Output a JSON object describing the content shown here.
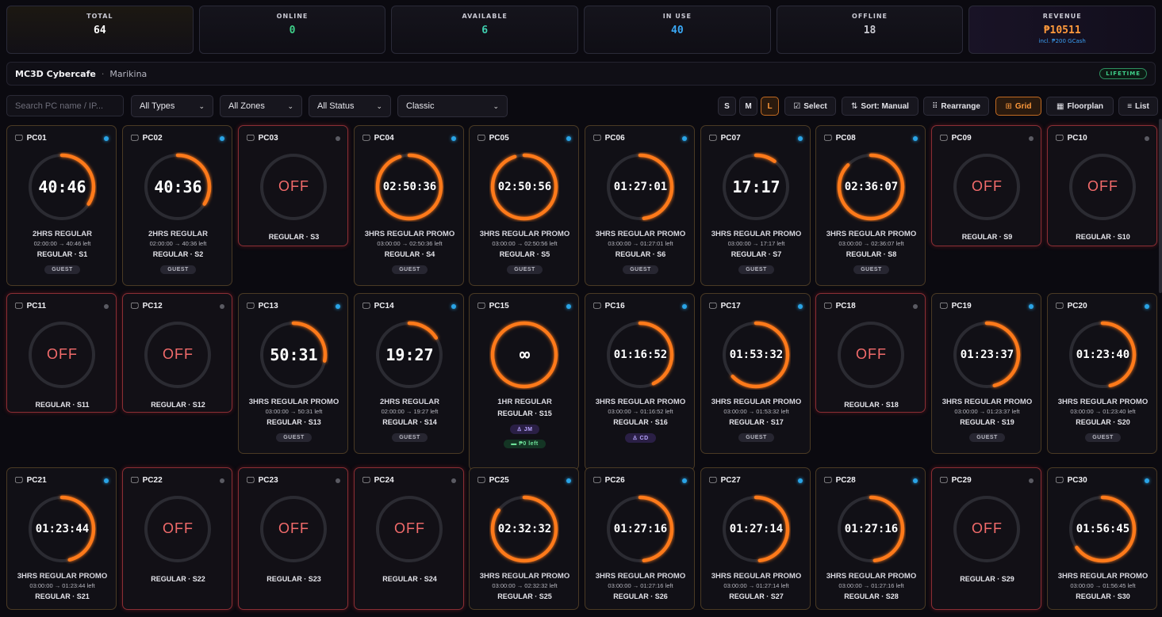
{
  "stats": [
    {
      "label": "TOTAL",
      "value": "64",
      "color": "#ffffff"
    },
    {
      "label": "ONLINE",
      "value": "0",
      "color": "#3fd08a"
    },
    {
      "label": "AVAILABLE",
      "value": "6",
      "color": "#3fd0b0"
    },
    {
      "label": "IN USE",
      "value": "40",
      "color": "#3aa8f5"
    },
    {
      "label": "OFFLINE",
      "value": "18",
      "color": "#c8c8d0"
    },
    {
      "label": "REVENUE",
      "value": "₱10511",
      "color": "#ff9a3c",
      "sub": "incl. ₱200 GCash"
    }
  ],
  "header": {
    "cafe_name": "MC3D Cybercafe",
    "separator": "·",
    "location": "Marikina",
    "license": "LIFETIME"
  },
  "toolbar": {
    "search_placeholder": "Search PC name / IP...",
    "type_filter": "All Types",
    "zone_filter": "All Zones",
    "status_filter": "All Status",
    "view_style": "Classic",
    "size_s": "S",
    "size_m": "M",
    "size_l": "L",
    "select_label": "Select",
    "sort_label": "Sort: Manual",
    "rearrange_label": "Rearrange",
    "grid_label": "Grid",
    "floorplan_label": "Floorplan",
    "list_label": "List"
  },
  "colors": {
    "accent": "#ff7a1a",
    "off": "#f26b6b",
    "online_dot": "#2aa4e6",
    "offline_dot": "#5a5a62",
    "track": "#2b2b32"
  },
  "pcs": [
    {
      "name": "PC01",
      "status": "inuse",
      "dot": "online",
      "time": "40:46",
      "progress": 0.34,
      "plan": "2HRS REGULAR",
      "timeline": "02:00:00 → 40:46 left",
      "seat": "REGULAR · S1",
      "badge": "GUEST"
    },
    {
      "name": "PC02",
      "status": "inuse",
      "dot": "online",
      "time": "40:36",
      "progress": 0.34,
      "plan": "2HRS REGULAR",
      "timeline": "02:00:00 → 40:36 left",
      "seat": "REGULAR · S2",
      "badge": "GUEST"
    },
    {
      "name": "PC03",
      "status": "off",
      "dot": "offline",
      "time": "OFF",
      "seat": "REGULAR · S3"
    },
    {
      "name": "PC04",
      "status": "inuse",
      "dot": "online",
      "time": "02:50:36",
      "progress": 0.95,
      "plan": "3HRS REGULAR PROMO",
      "timeline": "03:00:00 → 02:50:36 left",
      "seat": "REGULAR · S4",
      "badge": "GUEST"
    },
    {
      "name": "PC05",
      "status": "inuse",
      "dot": "online",
      "time": "02:50:56",
      "progress": 0.95,
      "plan": "3HRS REGULAR PROMO",
      "timeline": "03:00:00 → 02:50:56 left",
      "seat": "REGULAR · S5",
      "badge": "GUEST"
    },
    {
      "name": "PC06",
      "status": "inuse",
      "dot": "online",
      "time": "01:27:01",
      "progress": 0.48,
      "plan": "3HRS REGULAR PROMO",
      "timeline": "03:00:00 → 01:27:01 left",
      "seat": "REGULAR · S6",
      "badge": "GUEST"
    },
    {
      "name": "PC07",
      "status": "inuse",
      "dot": "online",
      "time": "17:17",
      "progress": 0.1,
      "plan": "3HRS REGULAR PROMO",
      "timeline": "03:00:00 → 17:17 left",
      "seat": "REGULAR · S7",
      "badge": "GUEST"
    },
    {
      "name": "PC08",
      "status": "inuse",
      "dot": "online",
      "time": "02:36:07",
      "progress": 0.87,
      "plan": "3HRS REGULAR PROMO",
      "timeline": "03:00:00 → 02:36:07 left",
      "seat": "REGULAR · S8",
      "badge": "GUEST"
    },
    {
      "name": "PC09",
      "status": "off",
      "dot": "offline",
      "time": "OFF",
      "seat": "REGULAR · S9"
    },
    {
      "name": "PC10",
      "status": "off",
      "dot": "offline",
      "time": "OFF",
      "seat": "REGULAR · S10"
    },
    {
      "name": "PC11",
      "status": "off",
      "dot": "offline",
      "time": "OFF",
      "seat": "REGULAR · S11"
    },
    {
      "name": "PC12",
      "status": "off",
      "dot": "offline",
      "time": "OFF",
      "seat": "REGULAR · S12"
    },
    {
      "name": "PC13",
      "status": "inuse",
      "dot": "online",
      "time": "50:31",
      "progress": 0.28,
      "plan": "3HRS REGULAR PROMO",
      "timeline": "03:00:00 → 50:31 left",
      "seat": "REGULAR · S13",
      "badge": "GUEST"
    },
    {
      "name": "PC14",
      "status": "inuse",
      "dot": "online",
      "time": "19:27",
      "progress": 0.16,
      "plan": "2HRS REGULAR",
      "timeline": "02:00:00 → 19:27 left",
      "seat": "REGULAR · S14",
      "badge": "GUEST"
    },
    {
      "name": "PC15",
      "status": "inuse",
      "dot": "online",
      "time": "∞",
      "progress": 1,
      "plan": "1HR REGULAR",
      "seat": "REGULAR · S15",
      "user": "JM",
      "wallet": "₱0 left"
    },
    {
      "name": "PC16",
      "status": "inuse",
      "dot": "online",
      "time": "01:16:52",
      "progress": 0.43,
      "plan": "3HRS REGULAR PROMO",
      "timeline": "03:00:00 → 01:16:52 left",
      "seat": "REGULAR · S16",
      "user": "CD"
    },
    {
      "name": "PC17",
      "status": "inuse",
      "dot": "online",
      "time": "01:53:32",
      "progress": 0.63,
      "plan": "3HRS REGULAR PROMO",
      "timeline": "03:00:00 → 01:53:32 left",
      "seat": "REGULAR · S17",
      "badge": "GUEST"
    },
    {
      "name": "PC18",
      "status": "off",
      "dot": "offline",
      "time": "OFF",
      "seat": "REGULAR · S18"
    },
    {
      "name": "PC19",
      "status": "inuse",
      "dot": "online",
      "time": "01:23:37",
      "progress": 0.46,
      "plan": "3HRS REGULAR PROMO",
      "timeline": "03:00:00 → 01:23:37 left",
      "seat": "REGULAR · S19",
      "badge": "GUEST"
    },
    {
      "name": "PC20",
      "status": "inuse",
      "dot": "online",
      "time": "01:23:40",
      "progress": 0.46,
      "plan": "3HRS REGULAR PROMO",
      "timeline": "03:00:00 → 01:23:40 left",
      "seat": "REGULAR · S20",
      "badge": "GUEST"
    },
    {
      "name": "PC21",
      "status": "inuse",
      "dot": "online",
      "time": "01:23:44",
      "progress": 0.46,
      "plan": "3HRS REGULAR PROMO",
      "timeline": "03:00:00 → 01:23:44 left",
      "seat": "REGULAR · S21"
    },
    {
      "name": "PC22",
      "status": "off",
      "dot": "offline",
      "time": "OFF",
      "seat": "REGULAR · S22"
    },
    {
      "name": "PC23",
      "status": "off",
      "dot": "offline",
      "time": "OFF",
      "seat": "REGULAR · S23"
    },
    {
      "name": "PC24",
      "status": "off",
      "dot": "offline",
      "time": "OFF",
      "seat": "REGULAR · S24"
    },
    {
      "name": "PC25",
      "status": "inuse",
      "dot": "online",
      "time": "02:32:32",
      "progress": 0.85,
      "plan": "3HRS REGULAR PROMO",
      "timeline": "03:00:00 → 02:32:32 left",
      "seat": "REGULAR · S25"
    },
    {
      "name": "PC26",
      "status": "inuse",
      "dot": "online",
      "time": "01:27:16",
      "progress": 0.48,
      "plan": "3HRS REGULAR PROMO",
      "timeline": "03:00:00 → 01:27:16 left",
      "seat": "REGULAR · S26"
    },
    {
      "name": "PC27",
      "status": "inuse",
      "dot": "online",
      "time": "01:27:14",
      "progress": 0.48,
      "plan": "3HRS REGULAR PROMO",
      "timeline": "03:00:00 → 01:27:14 left",
      "seat": "REGULAR · S27"
    },
    {
      "name": "PC28",
      "status": "inuse",
      "dot": "online",
      "time": "01:27:16",
      "progress": 0.48,
      "plan": "3HRS REGULAR PROMO",
      "timeline": "03:00:00 → 01:27:16 left",
      "seat": "REGULAR · S28"
    },
    {
      "name": "PC29",
      "status": "off",
      "dot": "offline",
      "time": "OFF",
      "seat": "REGULAR · S29"
    },
    {
      "name": "PC30",
      "status": "inuse",
      "dot": "online",
      "time": "01:56:45",
      "progress": 0.65,
      "plan": "3HRS REGULAR PROMO",
      "timeline": "03:00:00 → 01:56:45 left",
      "seat": "REGULAR · S30"
    }
  ]
}
